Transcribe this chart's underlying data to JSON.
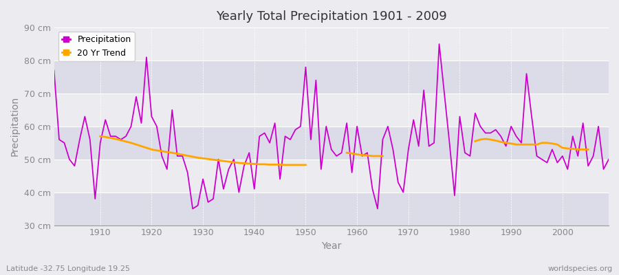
{
  "title": "Yearly Total Precipitation 1901 - 2009",
  "xlabel": "Year",
  "ylabel": "Precipitation",
  "lat_lon_label": "Latitude -32.75 Longitude 19.25",
  "watermark": "worldspecies.org",
  "ylim": [
    30,
    90
  ],
  "yticks": [
    30,
    40,
    50,
    60,
    70,
    80,
    90
  ],
  "ytick_labels": [
    "30 cm",
    "40 cm",
    "50 cm",
    "60 cm",
    "70 cm",
    "80 cm",
    "90 cm"
  ],
  "years": [
    1901,
    1902,
    1903,
    1904,
    1905,
    1906,
    1907,
    1908,
    1909,
    1910,
    1911,
    1912,
    1913,
    1914,
    1915,
    1916,
    1917,
    1918,
    1919,
    1920,
    1921,
    1922,
    1923,
    1924,
    1925,
    1926,
    1927,
    1928,
    1929,
    1930,
    1931,
    1932,
    1933,
    1934,
    1935,
    1936,
    1937,
    1938,
    1939,
    1940,
    1941,
    1942,
    1943,
    1944,
    1945,
    1946,
    1947,
    1948,
    1949,
    1950,
    1951,
    1952,
    1953,
    1954,
    1955,
    1956,
    1957,
    1958,
    1959,
    1960,
    1961,
    1962,
    1963,
    1964,
    1965,
    1966,
    1967,
    1968,
    1969,
    1970,
    1971,
    1972,
    1973,
    1974,
    1975,
    1976,
    1977,
    1978,
    1979,
    1980,
    1981,
    1982,
    1983,
    1984,
    1985,
    1986,
    1987,
    1988,
    1989,
    1990,
    1991,
    1992,
    1993,
    1994,
    1995,
    1996,
    1997,
    1998,
    1999,
    2000,
    2001,
    2002,
    2003,
    2004,
    2005,
    2006,
    2007,
    2008,
    2009
  ],
  "precip": [
    77,
    56,
    55,
    50,
    48,
    56,
    63,
    56,
    38,
    55,
    62,
    57,
    57,
    56,
    57,
    60,
    69,
    61,
    81,
    63,
    60,
    51,
    47,
    65,
    51,
    51,
    46,
    35,
    36,
    44,
    37,
    38,
    50,
    41,
    47,
    50,
    40,
    48,
    52,
    41,
    57,
    58,
    55,
    61,
    44,
    57,
    56,
    59,
    60,
    78,
    56,
    74,
    47,
    60,
    53,
    51,
    52,
    61,
    46,
    60,
    51,
    52,
    41,
    35,
    56,
    60,
    53,
    43,
    40,
    53,
    62,
    54,
    71,
    54,
    55,
    85,
    70,
    55,
    39,
    63,
    52,
    51,
    64,
    60,
    58,
    58,
    59,
    57,
    54,
    60,
    57,
    55,
    76,
    63,
    51,
    50,
    49,
    53,
    49,
    51,
    47,
    57,
    51,
    61,
    48,
    51,
    60,
    47,
    50
  ],
  "trend_segments": [
    {
      "years": [
        1910,
        1911,
        1912,
        1913,
        1914,
        1915,
        1916,
        1917,
        1918,
        1919,
        1920,
        1921,
        1922,
        1923,
        1924,
        1925,
        1926,
        1927,
        1928,
        1929,
        1930,
        1931,
        1932,
        1933,
        1934,
        1935,
        1936,
        1937,
        1938,
        1939,
        1940,
        1941,
        1942,
        1943,
        1944,
        1945,
        1946,
        1947,
        1948,
        1949,
        1950
      ],
      "values": [
        57.0,
        56.8,
        56.5,
        56.2,
        55.8,
        55.4,
        55.0,
        54.5,
        54.0,
        53.5,
        53.0,
        52.7,
        52.5,
        52.2,
        52.0,
        51.7,
        51.4,
        51.1,
        50.8,
        50.5,
        50.3,
        50.1,
        49.9,
        49.7,
        49.5,
        49.3,
        49.1,
        48.9,
        48.8,
        48.7,
        48.6,
        48.5,
        48.5,
        48.4,
        48.4,
        48.4,
        48.3,
        48.3,
        48.3,
        48.3,
        48.3
      ]
    },
    {
      "years": [
        1958,
        1959,
        1960,
        1961,
        1962,
        1963,
        1964,
        1965
      ],
      "values": [
        52.0,
        51.8,
        51.5,
        51.3,
        51.2,
        51.0,
        51.0,
        51.0
      ]
    },
    {
      "years": [
        1983,
        1984,
        1985,
        1986,
        1987,
        1988,
        1989,
        1990,
        1991,
        1992,
        1993,
        1994,
        1995,
        1996,
        1997,
        1998,
        1999,
        2000,
        2001,
        2002,
        2003,
        2004,
        2005
      ],
      "values": [
        55.5,
        56.0,
        56.2,
        56.0,
        55.7,
        55.3,
        55.0,
        54.8,
        54.5,
        54.5,
        54.5,
        54.5,
        54.5,
        55.0,
        55.0,
        54.8,
        54.5,
        53.5,
        53.3,
        53.2,
        53.0,
        53.0,
        53.0
      ]
    }
  ],
  "precip_color": "#CC00CC",
  "trend_color": "#FFA500",
  "bg_color_light": "#EBEBF0",
  "bg_color_dark": "#DCDCE8",
  "grid_color": "#FFFFFF",
  "text_color": "#888888",
  "title_color": "#333333",
  "legend_label_precip": "Precipitation",
  "legend_label_trend": "20 Yr Trend"
}
